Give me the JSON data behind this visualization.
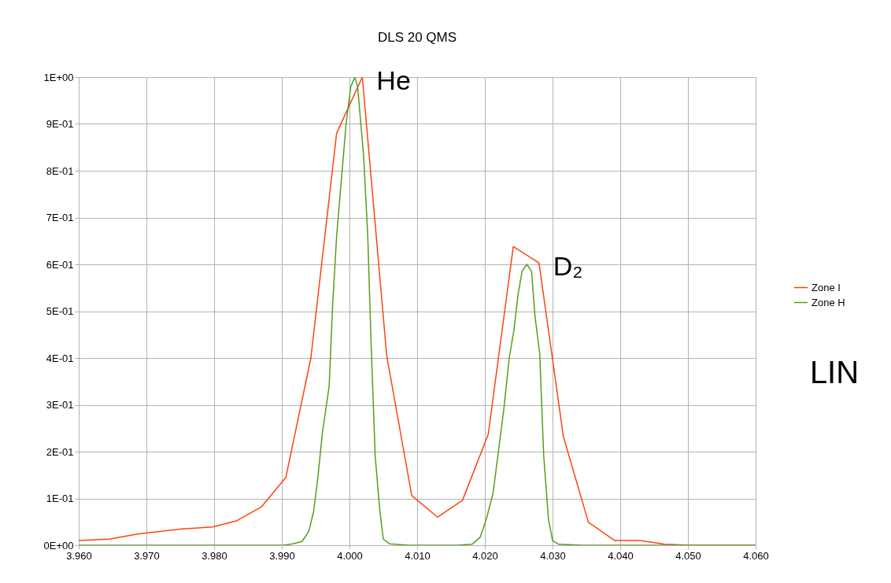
{
  "chart_data": {
    "type": "line",
    "title": "DLS 20 QMS",
    "series": [
      {
        "name": "Zone I",
        "color": "#ff420e",
        "x": [
          3.96,
          3.9645,
          3.9687,
          3.9722,
          3.9753,
          3.9798,
          3.9833,
          3.987,
          3.9906,
          3.9943,
          3.9981,
          4.0019,
          4.0055,
          4.0092,
          4.013,
          4.0167,
          4.0205,
          4.0242,
          4.028,
          4.0316,
          4.0353,
          4.0392,
          4.0429,
          4.0466,
          4.0503,
          4.06
        ],
        "values": [
          0.01,
          0.013,
          0.024,
          0.03,
          0.035,
          0.039,
          0.052,
          0.082,
          0.145,
          0.4,
          0.88,
          1.0,
          0.405,
          0.106,
          0.06,
          0.096,
          0.237,
          0.638,
          0.603,
          0.232,
          0.049,
          0.01,
          0.01,
          0.002,
          0.0,
          0.0
        ]
      },
      {
        "name": "Zone H",
        "color": "#579d1c",
        "x": [
          3.96,
          3.9902,
          3.9916,
          3.993,
          3.994,
          3.9947,
          3.9953,
          3.996,
          3.997,
          3.9975,
          3.9981,
          3.9988,
          3.9995,
          4.0002,
          4.0008,
          4.0012,
          4.0021,
          4.0027,
          4.0032,
          4.0038,
          4.0045,
          4.005,
          4.0059,
          4.0088,
          4.0158,
          4.0181,
          4.0193,
          4.0202,
          4.0212,
          4.022,
          4.0228,
          4.0236,
          4.0243,
          4.0249,
          4.0255,
          4.0262,
          4.0269,
          4.0274,
          4.0281,
          4.0287,
          4.0294,
          4.03,
          4.0309,
          4.0344,
          4.06
        ],
        "values": [
          0,
          0,
          0.003,
          0.008,
          0.03,
          0.072,
          0.14,
          0.24,
          0.34,
          0.51,
          0.66,
          0.78,
          0.9,
          0.98,
          1.0,
          0.98,
          0.83,
          0.66,
          0.43,
          0.19,
          0.072,
          0.013,
          0.003,
          0,
          0,
          0.002,
          0.017,
          0.055,
          0.11,
          0.2,
          0.29,
          0.4,
          0.46,
          0.535,
          0.585,
          0.6,
          0.585,
          0.49,
          0.41,
          0.19,
          0.055,
          0.01,
          0.002,
          0,
          0
        ]
      }
    ],
    "xlim": [
      3.96,
      4.06
    ],
    "xticks": [
      {
        "value": 3.96,
        "label": "3.960"
      },
      {
        "value": 3.97,
        "label": "3.970"
      },
      {
        "value": 3.98,
        "label": "3.980"
      },
      {
        "value": 3.99,
        "label": "3.990"
      },
      {
        "value": 4.0,
        "label": "4.000"
      },
      {
        "value": 4.01,
        "label": "4.010"
      },
      {
        "value": 4.02,
        "label": "4.020"
      },
      {
        "value": 4.03,
        "label": "4.030"
      },
      {
        "value": 4.04,
        "label": "4.040"
      },
      {
        "value": 4.05,
        "label": "4.050"
      },
      {
        "value": 4.06,
        "label": "4.060"
      }
    ],
    "ylim": [
      0,
      1
    ],
    "yticks": [
      {
        "value": 0,
        "label": "0E+00"
      },
      {
        "value": 0.1,
        "label": "1E-01"
      },
      {
        "value": 0.2,
        "label": "2E-01"
      },
      {
        "value": 0.3,
        "label": "3E-01"
      },
      {
        "value": 0.4,
        "label": "4E-01"
      },
      {
        "value": 0.5,
        "label": "5E-01"
      },
      {
        "value": 0.6,
        "label": "6E-01"
      },
      {
        "value": 0.7,
        "label": "7E-01"
      },
      {
        "value": 0.8,
        "label": "8E-01"
      },
      {
        "value": 0.9,
        "label": "9E-01"
      },
      {
        "value": 1,
        "label": "1E+00"
      }
    ],
    "grid": true,
    "legend": "right",
    "line_style": "solid",
    "marker": "none",
    "annotations": [
      {
        "text": "He",
        "x": 4.0019,
        "y": 1.0
      },
      {
        "text": "D₂",
        "x": 4.028,
        "y": 0.603
      },
      "LIN"
    ]
  }
}
